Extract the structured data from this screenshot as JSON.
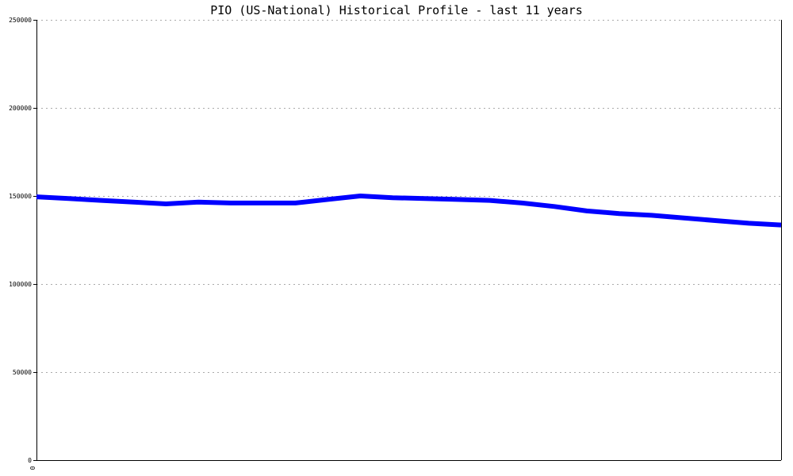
{
  "chart_data": {
    "type": "line",
    "title": "PIO (US-National) Historical Profile - last 11 years",
    "xlabel": "",
    "ylabel": "",
    "ylim": [
      0,
      250000
    ],
    "yticks": [
      0,
      50000,
      100000,
      150000,
      200000,
      250000
    ],
    "ytick_labels": [
      "0",
      "50000",
      "100000",
      "150000",
      "200000",
      "250000"
    ],
    "xtick_labels": [
      "0"
    ],
    "grid": true,
    "colors": {
      "series": "#0000ff",
      "grid": "#aaaaaa",
      "axis": "#000000"
    },
    "series": [
      {
        "values": [
          149500,
          148500,
          147500,
          146500,
          145500,
          146500,
          146000,
          146000,
          146000,
          148000,
          150000,
          149000,
          148500,
          148000,
          147500,
          146000,
          144000,
          141500,
          140000,
          139000,
          137500,
          136000,
          134500,
          133500
        ]
      }
    ]
  }
}
